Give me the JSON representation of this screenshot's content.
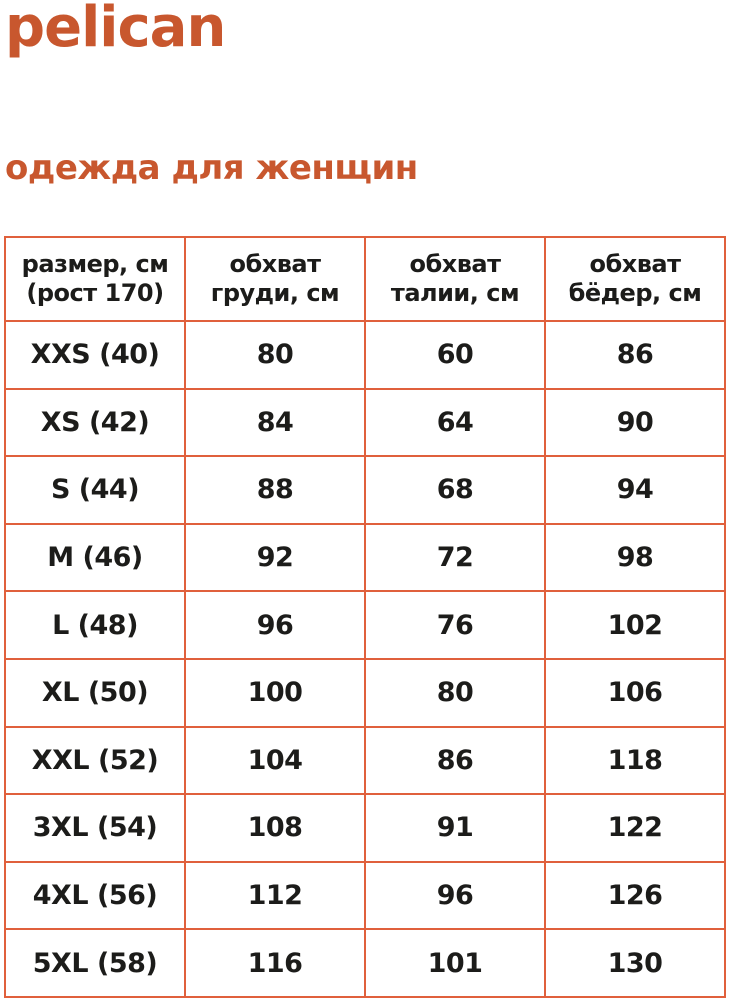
{
  "brand": {
    "logo": "pelican"
  },
  "page": {
    "title": "одежда для женщин"
  },
  "colors": {
    "accent": "#c8572e",
    "table_border": "#e0603c",
    "text": "#1c1c1a"
  },
  "size_table": {
    "headers": [
      {
        "line1": "размер, см",
        "line2": "(рост 170)"
      },
      {
        "line1": "обхват",
        "line2": "груди, см"
      },
      {
        "line1": "обхват",
        "line2": "талии, см"
      },
      {
        "line1": "обхват",
        "line2": "бёдер, см"
      }
    ],
    "rows": [
      {
        "size": "XXS (40)",
        "chest": "80",
        "waist": "60",
        "hips": "86"
      },
      {
        "size": "XS (42)",
        "chest": "84",
        "waist": "64",
        "hips": "90"
      },
      {
        "size": "S (44)",
        "chest": "88",
        "waist": "68",
        "hips": "94"
      },
      {
        "size": "M (46)",
        "chest": "92",
        "waist": "72",
        "hips": "98"
      },
      {
        "size": "L (48)",
        "chest": "96",
        "waist": "76",
        "hips": "102"
      },
      {
        "size": "XL (50)",
        "chest": "100",
        "waist": "80",
        "hips": "106"
      },
      {
        "size": "XXL (52)",
        "chest": "104",
        "waist": "86",
        "hips": "118"
      },
      {
        "size": "3XL (54)",
        "chest": "108",
        "waist": "91",
        "hips": "122"
      },
      {
        "size": "4XL (56)",
        "chest": "112",
        "waist": "96",
        "hips": "126"
      },
      {
        "size": "5XL (58)",
        "chest": "116",
        "waist": "101",
        "hips": "130"
      }
    ]
  }
}
